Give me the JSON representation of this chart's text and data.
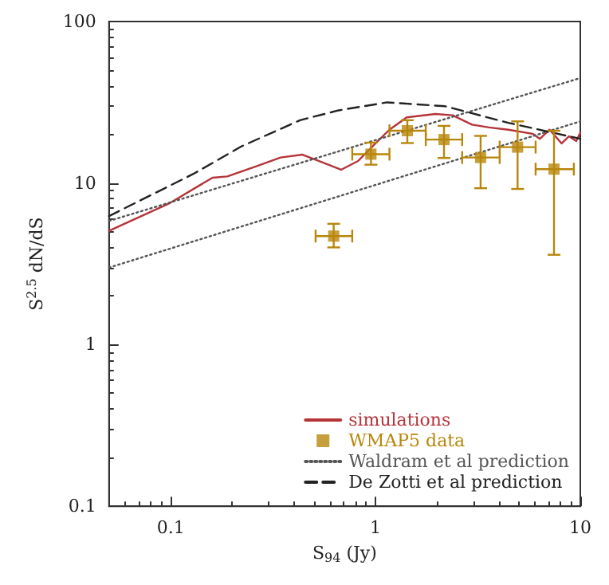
{
  "chart_data": {
    "type": "line",
    "xlabel": "S$_{94}$ (Jy)",
    "ylabel": "S$^{2.5}$ dN/dS",
    "xlim": [
      0.05,
      10
    ],
    "ylim": [
      0.1,
      100
    ],
    "xticks": [
      0.1,
      1,
      10
    ],
    "yticks": [
      0.1,
      1,
      10,
      100
    ],
    "log": "xy",
    "grid": false,
    "legend": "bottom right",
    "series": [
      {
        "name": "simulations",
        "color": "#b5343a",
        "line_style": "solid",
        "marker": "none",
        "x": [
          0.05,
          0.098,
          0.16,
          0.189,
          0.262,
          0.344,
          0.44,
          0.531,
          0.679,
          0.822,
          1.0,
          1.17,
          1.42,
          1.96,
          2.38,
          2.96,
          3.58,
          4.45,
          5.85,
          6.35,
          7.08,
          8.11,
          8.81,
          9.55,
          10
        ],
        "values": [
          5.06,
          7.47,
          10.8,
          11.0,
          12.7,
          14.4,
          15.0,
          13.7,
          12.1,
          13.7,
          17.6,
          21.4,
          25.5,
          26.8,
          26.3,
          23.0,
          22.1,
          21.4,
          20.2,
          18.8,
          21.4,
          17.6,
          19.5,
          18.2,
          20.5
        ]
      },
      {
        "name": "WMAP5 data",
        "type": "scatter",
        "color": "#b8860b",
        "marker": "square",
        "x": [
          0.625,
          0.95,
          1.43,
          2.16,
          3.26,
          4.94,
          7.44
        ],
        "values": [
          4.7,
          15.1,
          21.1,
          18.6,
          14.4,
          16.7,
          12.2
        ],
        "errors": [
          [
            4.0,
            5.6
          ],
          [
            13.0,
            17.8
          ],
          [
            17.7,
            24.5
          ],
          [
            14.3,
            22.6
          ],
          [
            9.3,
            19.6
          ],
          [
            9.2,
            24.1
          ],
          [
            3.6,
            21.1
          ]
        ],
        "xerrors": [
          [
            0.51,
            0.77
          ],
          [
            0.77,
            1.17
          ],
          [
            1.17,
            1.76
          ],
          [
            1.76,
            2.65
          ],
          [
            2.65,
            4.04
          ],
          [
            4.04,
            6.05
          ],
          [
            6.05,
            9.3
          ]
        ]
      },
      {
        "name": "Waldram et al prediction",
        "color": "#555555",
        "line_style": "dotted",
        "marker": "none",
        "x": [
          0.05,
          10
        ],
        "values": [
          5.83,
          44.7
        ]
      },
      {
        "color": "#555555",
        "line_style": "dotted",
        "marker": "none",
        "x": [
          0.05,
          10
        ],
        "values": [
          3.0,
          24.1
        ]
      },
      {
        "name": "De Zotti et al prediction",
        "color": "#222222",
        "line_style": "dashed",
        "marker": "none",
        "x": [
          0.05,
          0.129,
          0.222,
          0.428,
          0.661,
          1.14,
          2.19,
          4.45,
          10
        ],
        "values": [
          6.25,
          11.4,
          16.9,
          24.5,
          28.2,
          31.6,
          29.9,
          23.6,
          18.8
        ]
      }
    ]
  }
}
